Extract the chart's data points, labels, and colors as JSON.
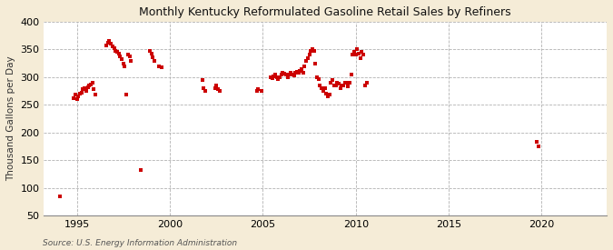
{
  "title": "Monthly Kentucky Reformulated Gasoline Retail Sales by Refiners",
  "ylabel": "Thousand Gallons per Day",
  "source": "Source: U.S. Energy Information Administration",
  "marker_color": "#CC0000",
  "bg_color": "#F5ECD7",
  "plot_bg_color": "#FFFFFF",
  "ylim": [
    50,
    400
  ],
  "yticks": [
    50,
    100,
    150,
    200,
    250,
    300,
    350,
    400
  ],
  "xlim": [
    1993.2,
    2023.5
  ],
  "xticks": [
    1995,
    2000,
    2005,
    2010,
    2015,
    2020
  ],
  "data_points": [
    [
      1994.08,
      85
    ],
    [
      1994.83,
      262
    ],
    [
      1994.92,
      268
    ],
    [
      1995.0,
      260
    ],
    [
      1995.08,
      265
    ],
    [
      1995.17,
      270
    ],
    [
      1995.25,
      272
    ],
    [
      1995.33,
      278
    ],
    [
      1995.42,
      280
    ],
    [
      1995.5,
      275
    ],
    [
      1995.58,
      282
    ],
    [
      1995.67,
      285
    ],
    [
      1995.75,
      287
    ],
    [
      1995.83,
      290
    ],
    [
      1995.92,
      278
    ],
    [
      1996.0,
      268
    ],
    [
      1996.58,
      358
    ],
    [
      1996.67,
      362
    ],
    [
      1996.75,
      365
    ],
    [
      1996.83,
      360
    ],
    [
      1996.92,
      356
    ],
    [
      1997.0,
      352
    ],
    [
      1997.08,
      348
    ],
    [
      1997.17,
      345
    ],
    [
      1997.25,
      342
    ],
    [
      1997.33,
      338
    ],
    [
      1997.42,
      332
    ],
    [
      1997.5,
      325
    ],
    [
      1997.58,
      320
    ],
    [
      1997.67,
      268
    ],
    [
      1997.75,
      340
    ],
    [
      1997.83,
      338
    ],
    [
      1997.92,
      330
    ],
    [
      1998.42,
      133
    ],
    [
      1998.92,
      348
    ],
    [
      1999.0,
      342
    ],
    [
      1999.08,
      336
    ],
    [
      1999.17,
      330
    ],
    [
      1999.42,
      320
    ],
    [
      1999.58,
      318
    ],
    [
      2001.75,
      295
    ],
    [
      2001.83,
      280
    ],
    [
      2001.92,
      275
    ],
    [
      2002.42,
      280
    ],
    [
      2002.5,
      285
    ],
    [
      2002.58,
      278
    ],
    [
      2002.67,
      275
    ],
    [
      2004.67,
      275
    ],
    [
      2004.75,
      278
    ],
    [
      2004.92,
      276
    ],
    [
      2005.42,
      300
    ],
    [
      2005.5,
      298
    ],
    [
      2005.58,
      302
    ],
    [
      2005.67,
      305
    ],
    [
      2005.75,
      300
    ],
    [
      2005.83,
      296
    ],
    [
      2005.92,
      300
    ],
    [
      2006.0,
      305
    ],
    [
      2006.08,
      308
    ],
    [
      2006.17,
      306
    ],
    [
      2006.25,
      305
    ],
    [
      2006.33,
      300
    ],
    [
      2006.42,
      305
    ],
    [
      2006.5,
      308
    ],
    [
      2006.58,
      305
    ],
    [
      2006.67,
      303
    ],
    [
      2006.75,
      308
    ],
    [
      2006.83,
      310
    ],
    [
      2006.92,
      308
    ],
    [
      2007.0,
      312
    ],
    [
      2007.08,
      315
    ],
    [
      2007.17,
      308
    ],
    [
      2007.25,
      320
    ],
    [
      2007.33,
      330
    ],
    [
      2007.42,
      335
    ],
    [
      2007.5,
      340
    ],
    [
      2007.58,
      348
    ],
    [
      2007.67,
      350
    ],
    [
      2007.75,
      348
    ],
    [
      2007.83,
      325
    ],
    [
      2007.92,
      300
    ],
    [
      2008.0,
      296
    ],
    [
      2008.08,
      285
    ],
    [
      2008.17,
      280
    ],
    [
      2008.25,
      275
    ],
    [
      2008.33,
      280
    ],
    [
      2008.42,
      270
    ],
    [
      2008.5,
      265
    ],
    [
      2008.58,
      268
    ],
    [
      2008.67,
      290
    ],
    [
      2008.75,
      295
    ],
    [
      2008.83,
      285
    ],
    [
      2008.92,
      285
    ],
    [
      2009.0,
      290
    ],
    [
      2009.08,
      288
    ],
    [
      2009.17,
      280
    ],
    [
      2009.25,
      285
    ],
    [
      2009.33,
      285
    ],
    [
      2009.42,
      290
    ],
    [
      2009.5,
      290
    ],
    [
      2009.58,
      283
    ],
    [
      2009.67,
      290
    ],
    [
      2009.75,
      305
    ],
    [
      2009.83,
      340
    ],
    [
      2009.92,
      345
    ],
    [
      2010.0,
      340
    ],
    [
      2010.08,
      350
    ],
    [
      2010.17,
      342
    ],
    [
      2010.25,
      335
    ],
    [
      2010.33,
      345
    ],
    [
      2010.42,
      340
    ],
    [
      2010.5,
      285
    ],
    [
      2010.58,
      290
    ],
    [
      2019.75,
      183
    ],
    [
      2019.83,
      175
    ]
  ]
}
